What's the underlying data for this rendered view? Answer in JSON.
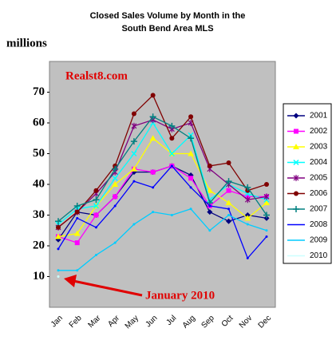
{
  "chart_data": {
    "type": "line",
    "title_lines": [
      "Closed Sales Volume by Month in the",
      "South Bend Area MLS"
    ],
    "y_label": "millions",
    "annotations": [
      "Realst8.com",
      "January 2010"
    ],
    "categories": [
      "Jan",
      "Feb",
      "Mar",
      "Apr",
      "May",
      "Jun",
      "Jul",
      "Aug",
      "Sep",
      "Oct",
      "Nov",
      "Dec"
    ],
    "ylim": [
      0,
      80
    ],
    "yticks": [
      10,
      20,
      30,
      40,
      50,
      60,
      70
    ],
    "grid": false,
    "legend": "right",
    "series": [
      {
        "name": "2001",
        "color": "#000080",
        "marker": "diamond",
        "values": [
          22,
          31,
          30,
          36,
          44,
          44,
          46,
          43,
          31,
          28,
          30,
          29
        ]
      },
      {
        "name": "2002",
        "color": "#ff00ff",
        "marker": "square",
        "values": [
          23,
          21,
          30,
          36,
          45,
          44,
          46,
          42,
          33,
          38,
          36,
          36
        ]
      },
      {
        "name": "2003",
        "color": "#ffff00",
        "marker": "triangle",
        "values": [
          23,
          24,
          33,
          40,
          45,
          55,
          50,
          50,
          38,
          34,
          29,
          34
        ]
      },
      {
        "name": "2004",
        "color": "#00ffff",
        "marker": "x",
        "values": [
          27,
          32,
          33,
          42,
          50,
          60,
          50,
          56,
          35,
          40,
          37,
          35
        ]
      },
      {
        "name": "2005",
        "color": "#800080",
        "marker": "star",
        "values": [
          26,
          31,
          37,
          44,
          59,
          61,
          58,
          60,
          45,
          40,
          35,
          36
        ]
      },
      {
        "name": "2006",
        "color": "#800000",
        "marker": "circle",
        "values": [
          26,
          31,
          38,
          46,
          63,
          69,
          55,
          62,
          46,
          47,
          38,
          40
        ]
      },
      {
        "name": "2007",
        "color": "#008080",
        "marker": "plus",
        "values": [
          28,
          33,
          35,
          45,
          54,
          62,
          59,
          55,
          34,
          41,
          39,
          30
        ]
      },
      {
        "name": "2008",
        "color": "#0000ff",
        "marker": "none",
        "values": [
          19,
          29,
          26,
          33,
          41,
          39,
          46,
          39,
          33,
          32,
          16,
          23
        ]
      },
      {
        "name": "2009",
        "color": "#00ccff",
        "marker": "none",
        "values": [
          12,
          12,
          17,
          21,
          27,
          31,
          30,
          32,
          25,
          30,
          27,
          25
        ]
      },
      {
        "name": "2010",
        "color": "#ccffff",
        "marker": "none",
        "values": [
          10,
          null,
          null,
          null,
          null,
          null,
          null,
          null,
          null,
          null,
          null,
          null
        ]
      }
    ]
  }
}
